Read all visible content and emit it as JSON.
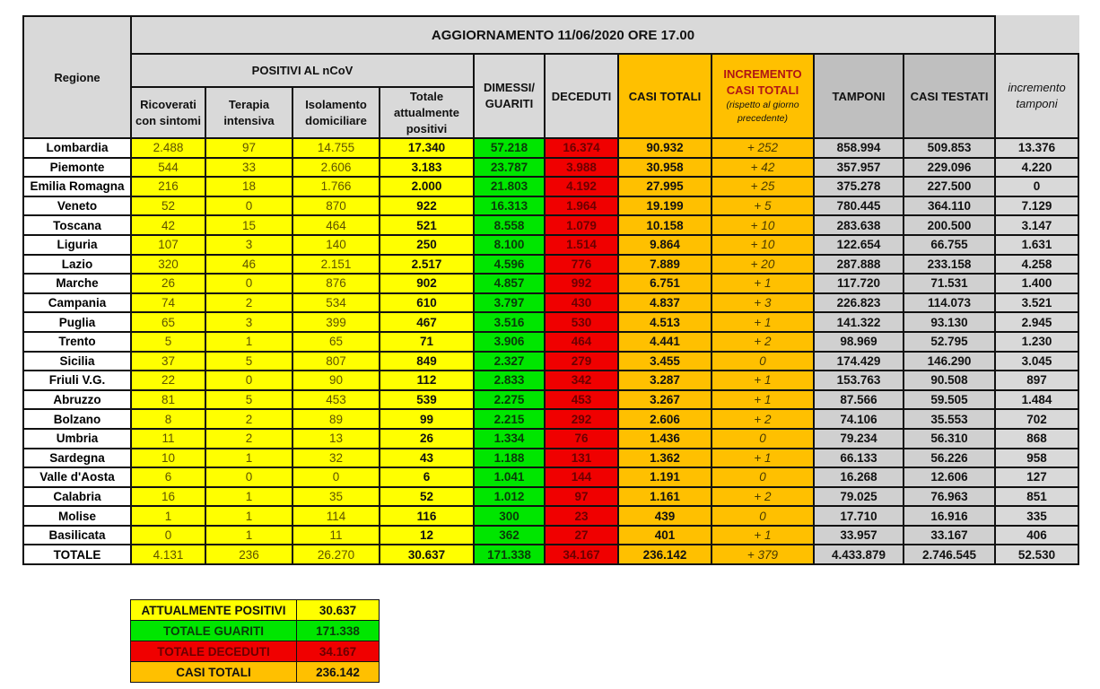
{
  "header": {
    "region": "Regione",
    "update": "AGGIORNAMENTO 11/06/2020 ORE 17.00",
    "positivi": "POSITIVI AL nCoV",
    "ricoverati": "Ricoverati con sintomi",
    "terapia": "Terapia intensiva",
    "isolamento": "Isolamento domiciliare",
    "totale_pos": "Totale attualmente positivi",
    "dimessi": "DIMESSI/ GUARITI",
    "deceduti": "DECEDUTI",
    "casi_totali": "CASI TOTALI",
    "incremento": "INCREMENTO CASI  TOTALI",
    "incremento_note": "(rispetto al giorno precedente)",
    "tamponi": "TAMPONI",
    "casi_testati": "CASI TESTATI",
    "incremento_tamponi": "incremento tamponi"
  },
  "colors": {
    "yellow": "#ffff00",
    "green": "#00e600",
    "red": "#f00000",
    "orange": "#ffc000",
    "gray": "#d9d9d9"
  },
  "rows": [
    [
      "Lombardia",
      "2.488",
      "97",
      "14.755",
      "17.340",
      "57.218",
      "16.374",
      "90.932",
      "+ 252",
      "858.994",
      "509.853",
      "13.376"
    ],
    [
      "Piemonte",
      "544",
      "33",
      "2.606",
      "3.183",
      "23.787",
      "3.988",
      "30.958",
      "+ 42",
      "357.957",
      "229.096",
      "4.220"
    ],
    [
      "Emilia Romagna",
      "216",
      "18",
      "1.766",
      "2.000",
      "21.803",
      "4.192",
      "27.995",
      "+ 25",
      "375.278",
      "227.500",
      "0"
    ],
    [
      "Veneto",
      "52",
      "0",
      "870",
      "922",
      "16.313",
      "1.964",
      "19.199",
      "+ 5",
      "780.445",
      "364.110",
      "7.129"
    ],
    [
      "Toscana",
      "42",
      "15",
      "464",
      "521",
      "8.558",
      "1.079",
      "10.158",
      "+ 10",
      "283.638",
      "200.500",
      "3.147"
    ],
    [
      "Liguria",
      "107",
      "3",
      "140",
      "250",
      "8.100",
      "1.514",
      "9.864",
      "+ 10",
      "122.654",
      "66.755",
      "1.631"
    ],
    [
      "Lazio",
      "320",
      "46",
      "2.151",
      "2.517",
      "4.596",
      "776",
      "7.889",
      "+ 20",
      "287.888",
      "233.158",
      "4.258"
    ],
    [
      "Marche",
      "26",
      "0",
      "876",
      "902",
      "4.857",
      "992",
      "6.751",
      "+ 1",
      "117.720",
      "71.531",
      "1.400"
    ],
    [
      "Campania",
      "74",
      "2",
      "534",
      "610",
      "3.797",
      "430",
      "4.837",
      "+ 3",
      "226.823",
      "114.073",
      "3.521"
    ],
    [
      "Puglia",
      "65",
      "3",
      "399",
      "467",
      "3.516",
      "530",
      "4.513",
      "+ 1",
      "141.322",
      "93.130",
      "2.945"
    ],
    [
      "Trento",
      "5",
      "1",
      "65",
      "71",
      "3.906",
      "464",
      "4.441",
      "+ 2",
      "98.969",
      "52.795",
      "1.230"
    ],
    [
      "Sicilia",
      "37",
      "5",
      "807",
      "849",
      "2.327",
      "279",
      "3.455",
      "0",
      "174.429",
      "146.290",
      "3.045"
    ],
    [
      "Friuli V.G.",
      "22",
      "0",
      "90",
      "112",
      "2.833",
      "342",
      "3.287",
      "+ 1",
      "153.763",
      "90.508",
      "897"
    ],
    [
      "Abruzzo",
      "81",
      "5",
      "453",
      "539",
      "2.275",
      "453",
      "3.267",
      "+ 1",
      "87.566",
      "59.505",
      "1.484"
    ],
    [
      "Bolzano",
      "8",
      "2",
      "89",
      "99",
      "2.215",
      "292",
      "2.606",
      "+ 2",
      "74.106",
      "35.553",
      "702"
    ],
    [
      "Umbria",
      "11",
      "2",
      "13",
      "26",
      "1.334",
      "76",
      "1.436",
      "0",
      "79.234",
      "56.310",
      "868"
    ],
    [
      "Sardegna",
      "10",
      "1",
      "32",
      "43",
      "1.188",
      "131",
      "1.362",
      "+ 1",
      "66.133",
      "56.226",
      "958"
    ],
    [
      "Valle d'Aosta",
      "6",
      "0",
      "0",
      "6",
      "1.041",
      "144",
      "1.191",
      "0",
      "16.268",
      "12.606",
      "127"
    ],
    [
      "Calabria",
      "16",
      "1",
      "35",
      "52",
      "1.012",
      "97",
      "1.161",
      "+ 2",
      "79.025",
      "76.963",
      "851"
    ],
    [
      "Molise",
      "1",
      "1",
      "114",
      "116",
      "300",
      "23",
      "439",
      "0",
      "17.710",
      "16.916",
      "335"
    ],
    [
      "Basilicata",
      "0",
      "1",
      "11",
      "12",
      "362",
      "27",
      "401",
      "+ 1",
      "33.957",
      "33.167",
      "406"
    ],
    [
      "TOTALE",
      "4.131",
      "236",
      "26.270",
      "30.637",
      "171.338",
      "34.167",
      "236.142",
      "+ 379",
      "4.433.879",
      "2.746.545",
      "52.530"
    ]
  ],
  "summary": [
    {
      "label": "ATTUALMENTE POSITIVI",
      "value": "30.637",
      "color": "#ffff00",
      "text": "#111"
    },
    {
      "label": "TOTALE GUARITI",
      "value": "171.338",
      "color": "#00e600",
      "text": "#0a3a0a"
    },
    {
      "label": "TOTALE DECEDUTI",
      "value": "34.167",
      "color": "#f00000",
      "text": "#6b0000"
    },
    {
      "label": "CASI TOTALI",
      "value": "236.142",
      "color": "#ffc000",
      "text": "#111"
    }
  ]
}
